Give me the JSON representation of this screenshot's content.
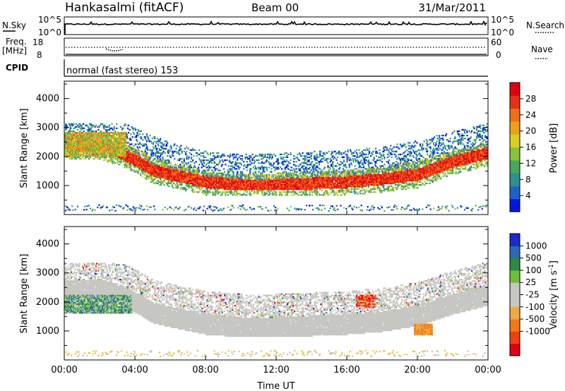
{
  "header": {
    "station": "Hankasalmi (fitACF)",
    "beam": "Beam 00",
    "date": "31/Mar/2011"
  },
  "summary_panels": {
    "nsky_label": "N.Sky",
    "nsky_ticks": [
      "10^5",
      "10^0"
    ],
    "nsearch_label": "N.Search",
    "nsearch_ticks": [
      "10^5",
      "10^0"
    ],
    "freq_label": "Freq.",
    "freq_unit": "[MHz]",
    "freq_ticks": [
      "18",
      "8"
    ],
    "nave_label": "Nave",
    "nave_ticks": [
      "60",
      "0"
    ],
    "cpid_label": "CPID",
    "cpid_text": "normal (fast stereo) 153"
  },
  "colors": {
    "power_scale": [
      "#0018e0",
      "#1e64c8",
      "#2f8f8f",
      "#47a85a",
      "#86c23a",
      "#d8d020",
      "#f0a018",
      "#f07018",
      "#e83018",
      "#e00010"
    ],
    "velocity_scale": [
      "#e00010",
      "#f04010",
      "#f07a18",
      "#f0a840",
      "#c6c6c2",
      "#c6c6c2",
      "#6cc038",
      "#2c8a40",
      "#2a6ab0",
      "#1a2ad0"
    ],
    "ground_scatter": "#c6c6c2"
  },
  "chart_data": [
    {
      "type": "heatmap",
      "name": "power",
      "ylabel": "Slant Range [km]",
      "yticks": [
        "1000",
        "2000",
        "3000",
        "4000"
      ],
      "ylim": [
        0,
        4600
      ],
      "xlim": [
        "00:00",
        "24:00"
      ],
      "colorbar_label": "Power [dB]",
      "colorbar_ticks": [
        "4",
        "8",
        "12",
        "16",
        "20",
        "24",
        "28"
      ],
      "colorbar_range": [
        0,
        32
      ],
      "upper_edge_km": [
        [
          0,
          2650
        ],
        [
          2,
          2700
        ],
        [
          3,
          2600
        ],
        [
          4,
          2300
        ],
        [
          5,
          2050
        ],
        [
          6,
          1800
        ],
        [
          8,
          1500
        ],
        [
          10,
          1400
        ],
        [
          12,
          1450
        ],
        [
          14,
          1500
        ],
        [
          16,
          1550
        ],
        [
          18,
          1650
        ],
        [
          20,
          1900
        ],
        [
          22,
          2200
        ],
        [
          24,
          2500
        ]
      ],
      "band_center_km": [
        [
          0,
          2400
        ],
        [
          2,
          2350
        ],
        [
          3,
          2200
        ],
        [
          4,
          1900
        ],
        [
          5,
          1550
        ],
        [
          6,
          1400
        ],
        [
          8,
          1150
        ],
        [
          10,
          1050
        ],
        [
          12,
          1050
        ],
        [
          14,
          1100
        ],
        [
          16,
          1150
        ],
        [
          18,
          1250
        ],
        [
          20,
          1400
        ],
        [
          22,
          1850
        ],
        [
          24,
          2150
        ]
      ]
    },
    {
      "type": "heatmap",
      "name": "velocity",
      "ylabel": "Slant Range [km]",
      "xlabel": "Time UT",
      "xticks": [
        "00:00",
        "04:00",
        "08:00",
        "12:00",
        "16:00",
        "20:00",
        "00:00"
      ],
      "yticks": [
        "1000",
        "2000",
        "3000",
        "4000"
      ],
      "ylim": [
        0,
        4600
      ],
      "xlim": [
        "00:00",
        "24:00"
      ],
      "colorbar_label": "Velocity [m s",
      "colorbar_unit_exp": "-1",
      "colorbar_ticks": [
        "1000",
        "500",
        "100",
        "25",
        "-25",
        "-100",
        "-500",
        "-1000"
      ],
      "ground_scatter_band_center_km": [
        [
          0,
          2400
        ],
        [
          2,
          2350
        ],
        [
          3,
          2250
        ],
        [
          4,
          1950
        ],
        [
          5,
          1600
        ],
        [
          6,
          1450
        ],
        [
          8,
          1200
        ],
        [
          10,
          1100
        ],
        [
          12,
          1100
        ],
        [
          14,
          1150
        ],
        [
          16,
          1200
        ],
        [
          18,
          1300
        ],
        [
          20,
          1500
        ],
        [
          22,
          1900
        ],
        [
          24,
          2200
        ]
      ]
    }
  ]
}
